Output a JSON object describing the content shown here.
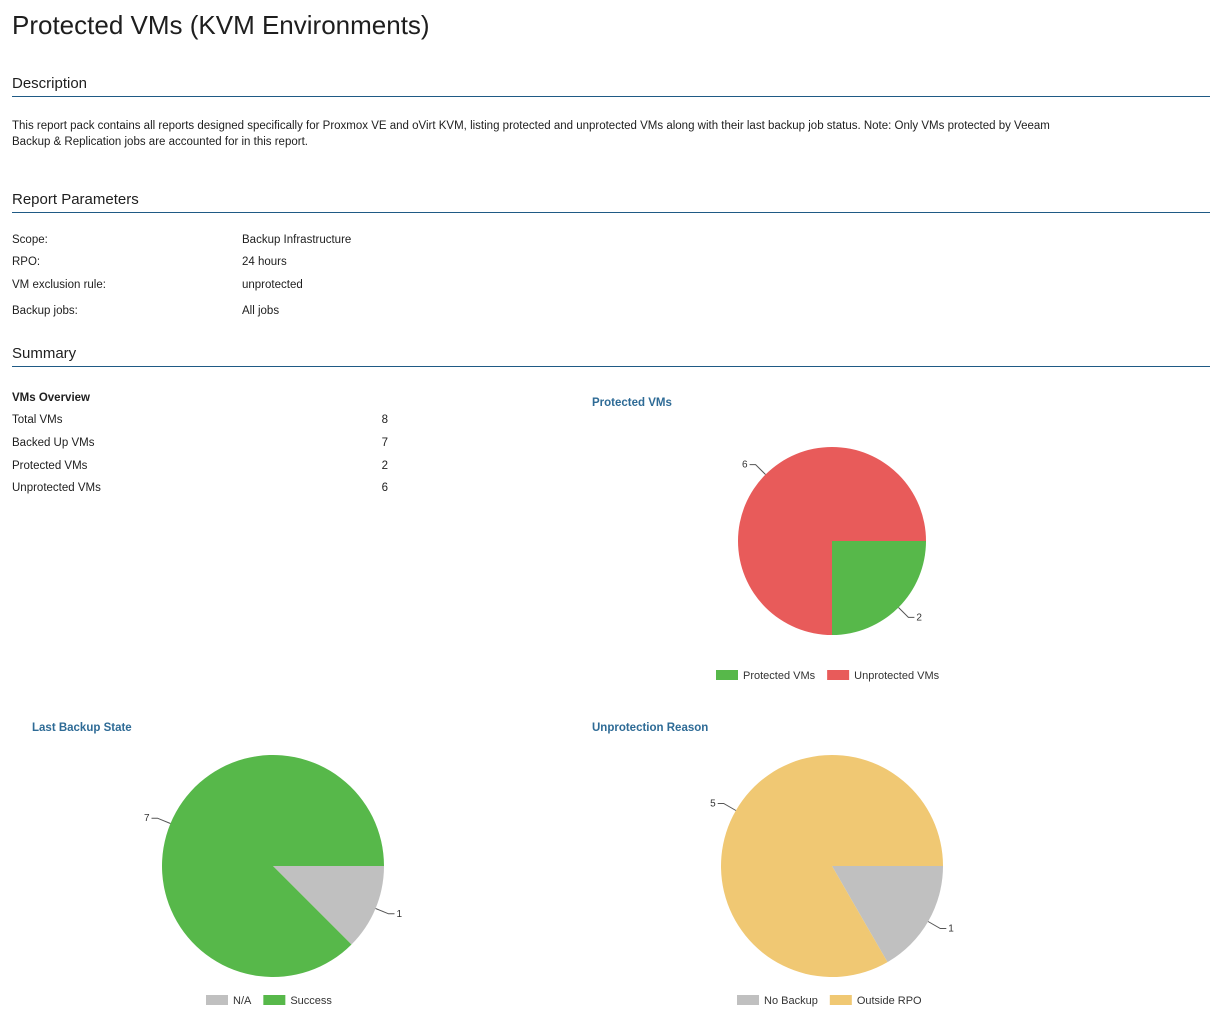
{
  "page": {
    "title": "Protected VMs (KVM Environments)"
  },
  "description": {
    "heading": "Description",
    "text": "This report pack contains all reports designed specifically for Proxmox VE and oVirt KVM, listing protected and unprotected VMs along with their last backup job status. Note: Only VMs protected by Veeam Backup & Replication jobs are accounted for in this report."
  },
  "parameters": {
    "heading": "Report Parameters",
    "rows": [
      {
        "label": "Scope:",
        "value": "Backup Infrastructure"
      },
      {
        "label": "RPO:",
        "value": "24 hours"
      },
      {
        "label": "VM exclusion rule:",
        "value": "unprotected"
      },
      {
        "label": "Backup jobs:",
        "value": "All jobs"
      }
    ]
  },
  "summary": {
    "heading": "Summary",
    "overview": {
      "title": "VMs Overview",
      "rows": [
        {
          "label": "Total VMs",
          "value": "8"
        },
        {
          "label": "Backed Up VMs",
          "value": "7"
        },
        {
          "label": "Protected VMs",
          "value": "2"
        },
        {
          "label": "Unprotected VMs",
          "value": "6"
        }
      ]
    }
  },
  "colors": {
    "green": "#57b84a",
    "red": "#e85b5a",
    "gray": "#c0c0c0",
    "yellow": "#f0c873",
    "heading_rule": "#1f5a85",
    "chart_title": "#2e6b96"
  },
  "chart_data": [
    {
      "type": "pie",
      "title": "Protected VMs",
      "series": [
        {
          "name": "Protected VMs",
          "value": 2,
          "color": "#57b84a"
        },
        {
          "name": "Unprotected VMs",
          "value": 6,
          "color": "#e85b5a"
        }
      ]
    },
    {
      "type": "pie",
      "title": "Last Backup State",
      "series": [
        {
          "name": "N/A",
          "value": 1,
          "color": "#c0c0c0"
        },
        {
          "name": "Success",
          "value": 7,
          "color": "#57b84a"
        }
      ]
    },
    {
      "type": "pie",
      "title": "Unprotection Reason",
      "series": [
        {
          "name": "No Backup",
          "value": 1,
          "color": "#c0c0c0"
        },
        {
          "name": "Outside RPO",
          "value": 5,
          "color": "#f0c873"
        }
      ]
    }
  ]
}
